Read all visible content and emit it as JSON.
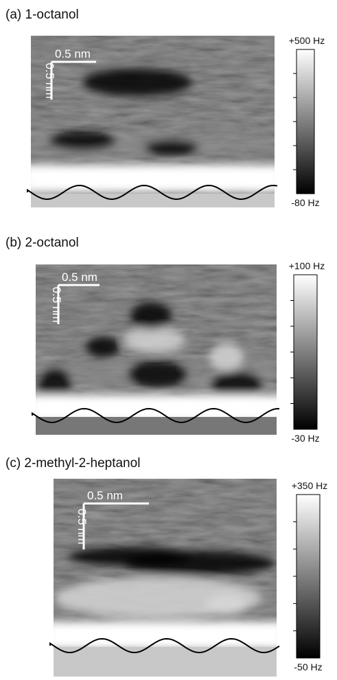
{
  "panels": [
    {
      "label": "(a) 1-octanol",
      "scale_bar": {
        "horizontal": "0.5 nm",
        "vertical": "0.5 nm"
      },
      "colorbar": {
        "max": "+500 Hz",
        "min": "-80 Hz"
      }
    },
    {
      "label": "(b) 2-octanol",
      "scale_bar": {
        "horizontal": "0.5 nm",
        "vertical": "0.5 nm"
      },
      "colorbar": {
        "max": "+100 Hz",
        "min": "-30 Hz"
      }
    },
    {
      "label": "(c) 2-methyl-2-heptanol",
      "scale_bar": {
        "horizontal": "0.5 nm",
        "vertical": "0.5 nm"
      },
      "colorbar": {
        "max": "+350 Hz",
        "min": "-50 Hz"
      }
    }
  ]
}
